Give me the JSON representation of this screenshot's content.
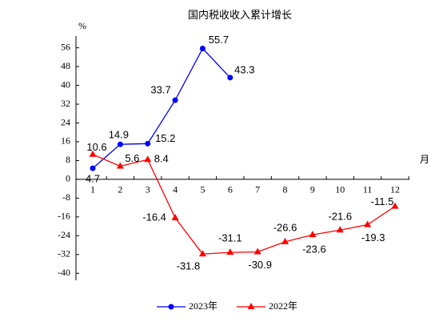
{
  "chart_data": {
    "type": "line",
    "title": "国内税收收入累计增长",
    "y_label": "%",
    "x_label": "月",
    "categories": [
      "1",
      "2",
      "3",
      "4",
      "5",
      "6",
      "7",
      "8",
      "9",
      "10",
      "11",
      "12"
    ],
    "series": [
      {
        "name": "2023年",
        "color": "#0000ff",
        "marker": "circle",
        "values": [
          4.7,
          14.9,
          15.2,
          33.7,
          55.7,
          43.3,
          null,
          null,
          null,
          null,
          null,
          null
        ]
      },
      {
        "name": "2022年",
        "color": "#ff0000",
        "marker": "triangle",
        "values": [
          10.6,
          5.6,
          8.4,
          -16.4,
          -31.8,
          -31.1,
          -30.9,
          -26.6,
          -23.6,
          -21.6,
          -19.3,
          -11.5
        ]
      }
    ],
    "ylim": [
      -43,
      61
    ],
    "yticks": [
      56,
      48,
      40,
      32,
      24,
      16,
      8,
      0,
      -8,
      -16,
      -24,
      -32,
      -40
    ],
    "legend": "bottom"
  }
}
